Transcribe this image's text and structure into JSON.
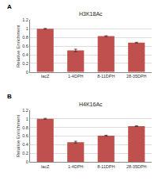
{
  "chart_data": [
    {
      "type": "bar",
      "panel_label": "A",
      "title": "H3K18Ac",
      "categories": [
        "lacZ",
        "1-4DPH",
        "8-11DPH",
        "28-35DPH"
      ],
      "values": [
        1.0,
        0.5,
        0.83,
        0.68
      ],
      "errors": [
        0.01,
        0.03,
        0.01,
        0.01
      ],
      "color": "#c0504d",
      "y_label": "Relative Enrichment",
      "ylim": [
        0,
        1.2
      ],
      "yticks": [
        0,
        0.2,
        0.4,
        0.6,
        0.8,
        1,
        1.2
      ],
      "grid": true
    },
    {
      "type": "bar",
      "panel_label": "B",
      "title": "H4K16Ac",
      "categories": [
        "lacZ",
        "1-4DPH",
        "8-11DPH",
        "28-35DPH"
      ],
      "values": [
        1.0,
        0.46,
        0.61,
        0.83
      ],
      "errors": [
        0.01,
        0.02,
        0.01,
        0.01
      ],
      "color": "#c0504d",
      "y_label": "Relative Enrichment",
      "ylim": [
        0,
        1.2
      ],
      "yticks": [
        0,
        0.2,
        0.4,
        0.6,
        0.8,
        1,
        1.2
      ],
      "grid": true
    }
  ]
}
